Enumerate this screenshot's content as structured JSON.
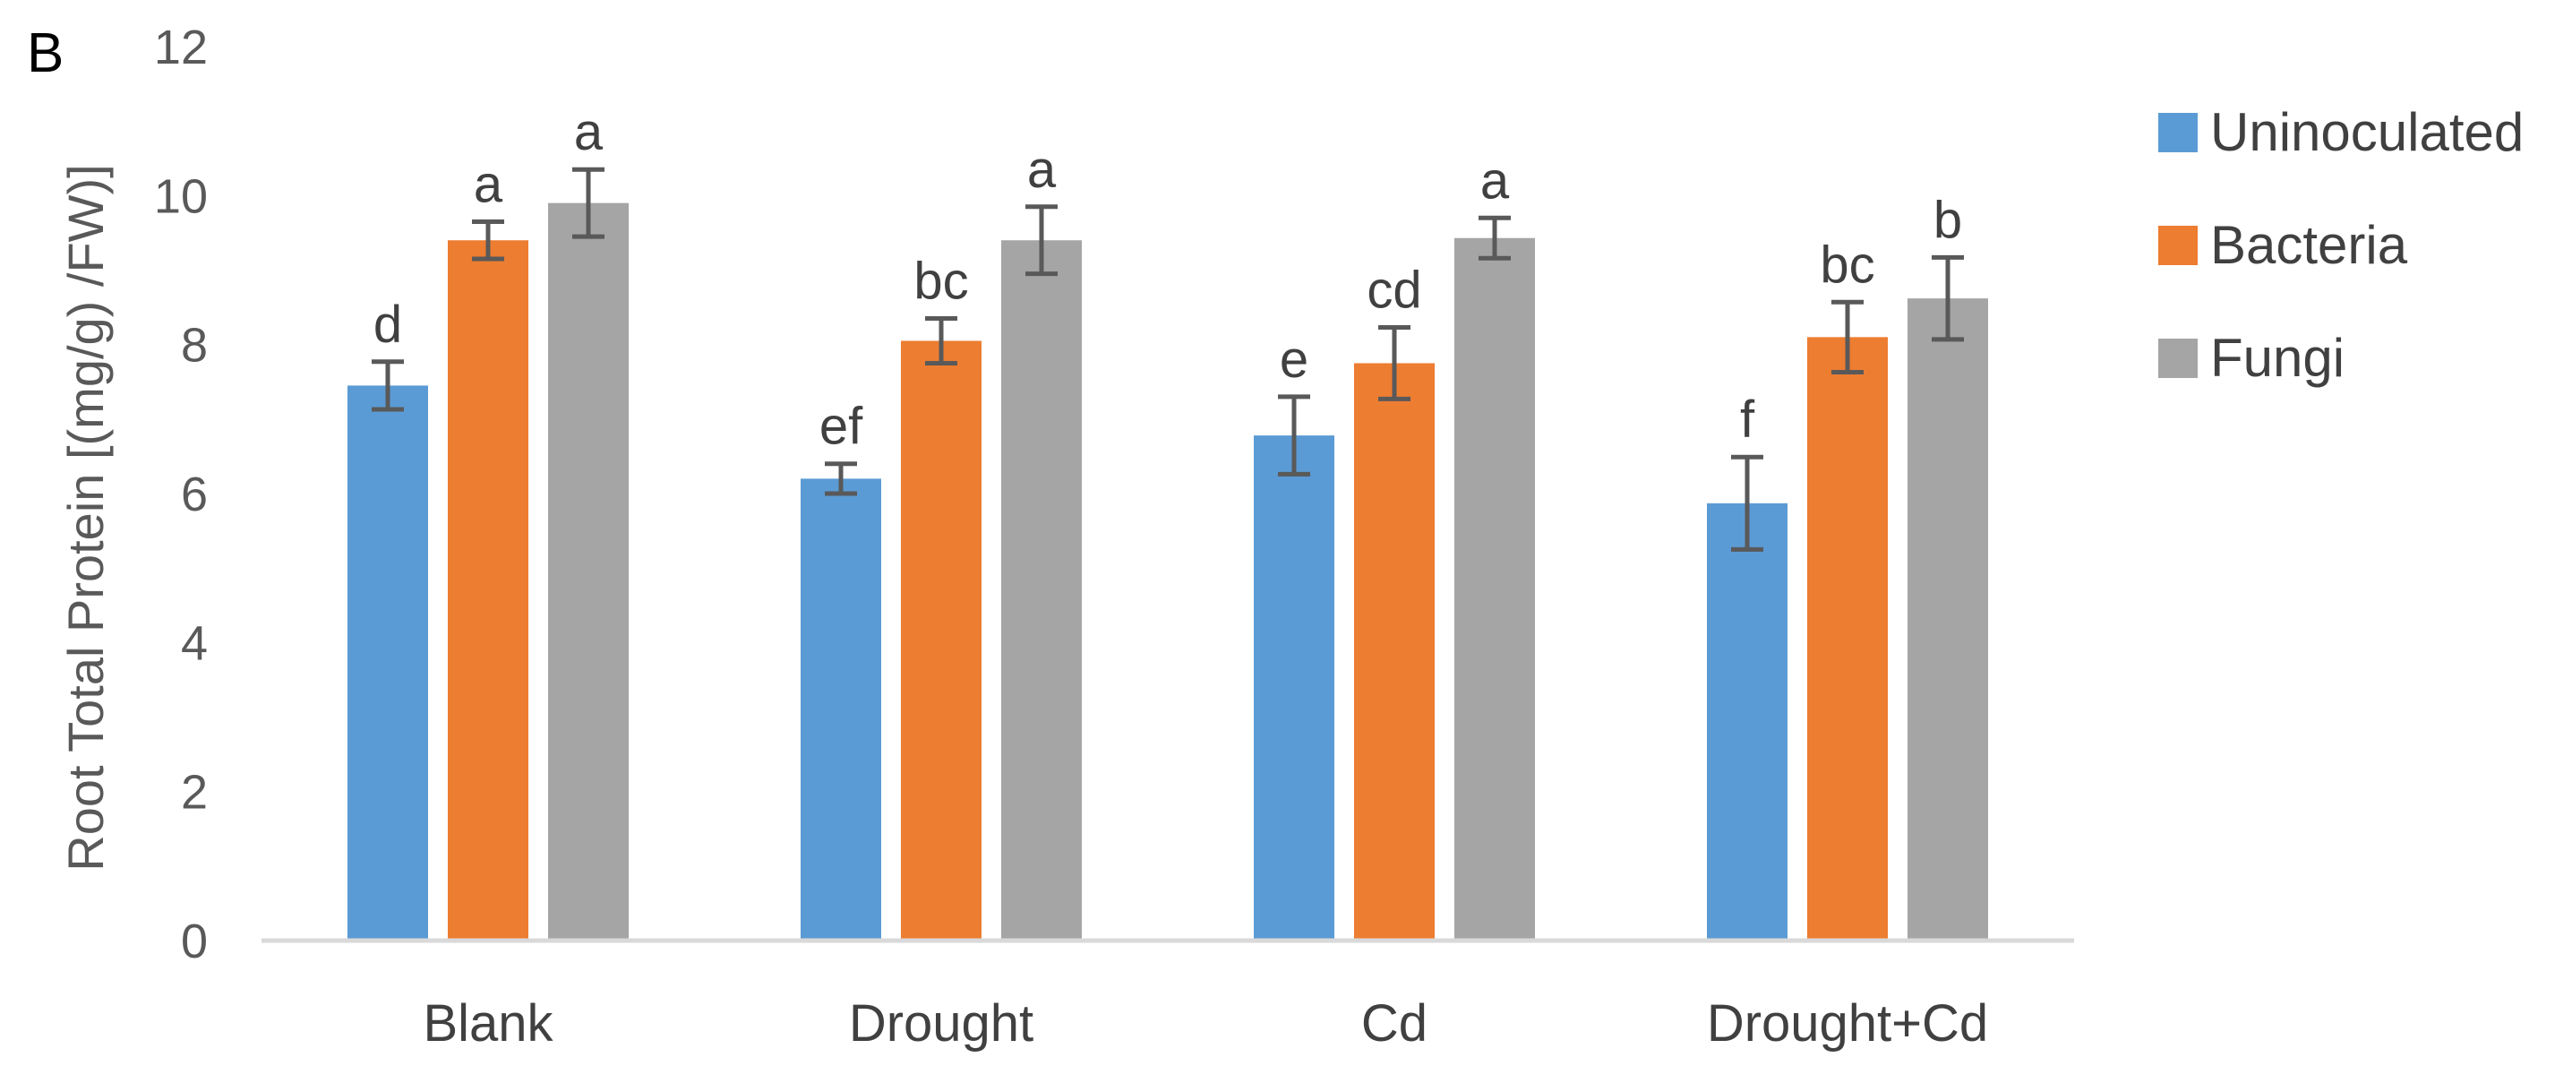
{
  "chart_data": {
    "type": "bar",
    "panel_label": "B",
    "title": "",
    "xlabel": "",
    "ylabel": "Root Total Protein [(mg/g) /FW)]",
    "ylim": [
      0,
      12
    ],
    "yticks": [
      0,
      2,
      4,
      6,
      8,
      10,
      12
    ],
    "grid": false,
    "legend_position": "right",
    "categories": [
      "Blank",
      "Drought",
      "Cd",
      "Drought+Cd"
    ],
    "series": [
      {
        "name": "Uninoculated",
        "color": "#5B9BD5",
        "values": [
          7.45,
          6.2,
          6.78,
          5.87
        ],
        "errors": [
          0.32,
          0.2,
          0.52,
          0.62
        ],
        "letters": [
          "d",
          "ef",
          "e",
          "f"
        ]
      },
      {
        "name": "Bacteria",
        "color": "#ED7D31",
        "values": [
          9.4,
          8.05,
          7.75,
          8.1
        ],
        "errors": [
          0.25,
          0.3,
          0.48,
          0.47
        ],
        "letters": [
          "a",
          "bc",
          "cd",
          "bc"
        ]
      },
      {
        "name": "Fungi",
        "color": "#A5A5A5",
        "values": [
          9.9,
          9.4,
          9.43,
          8.62
        ],
        "errors": [
          0.45,
          0.45,
          0.27,
          0.55
        ],
        "letters": [
          "a",
          "a",
          "a",
          "b"
        ]
      }
    ]
  }
}
